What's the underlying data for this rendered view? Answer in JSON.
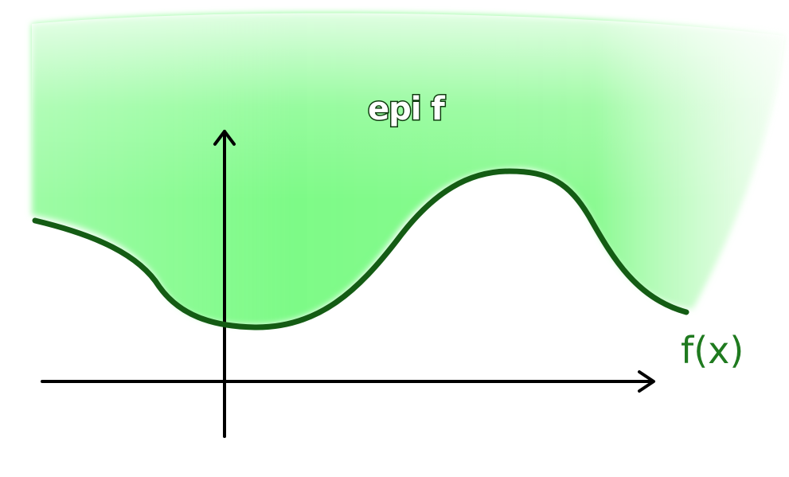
{
  "labels": {
    "epigraph": "epi f",
    "function": "f(x)"
  },
  "colors": {
    "region_fill": "#7dfa87",
    "region_fill_light": "#c9fbc9",
    "curve": "#145c14",
    "function_label": "#1f7a1f",
    "axes": "#000000",
    "background": "#ffffff"
  }
}
